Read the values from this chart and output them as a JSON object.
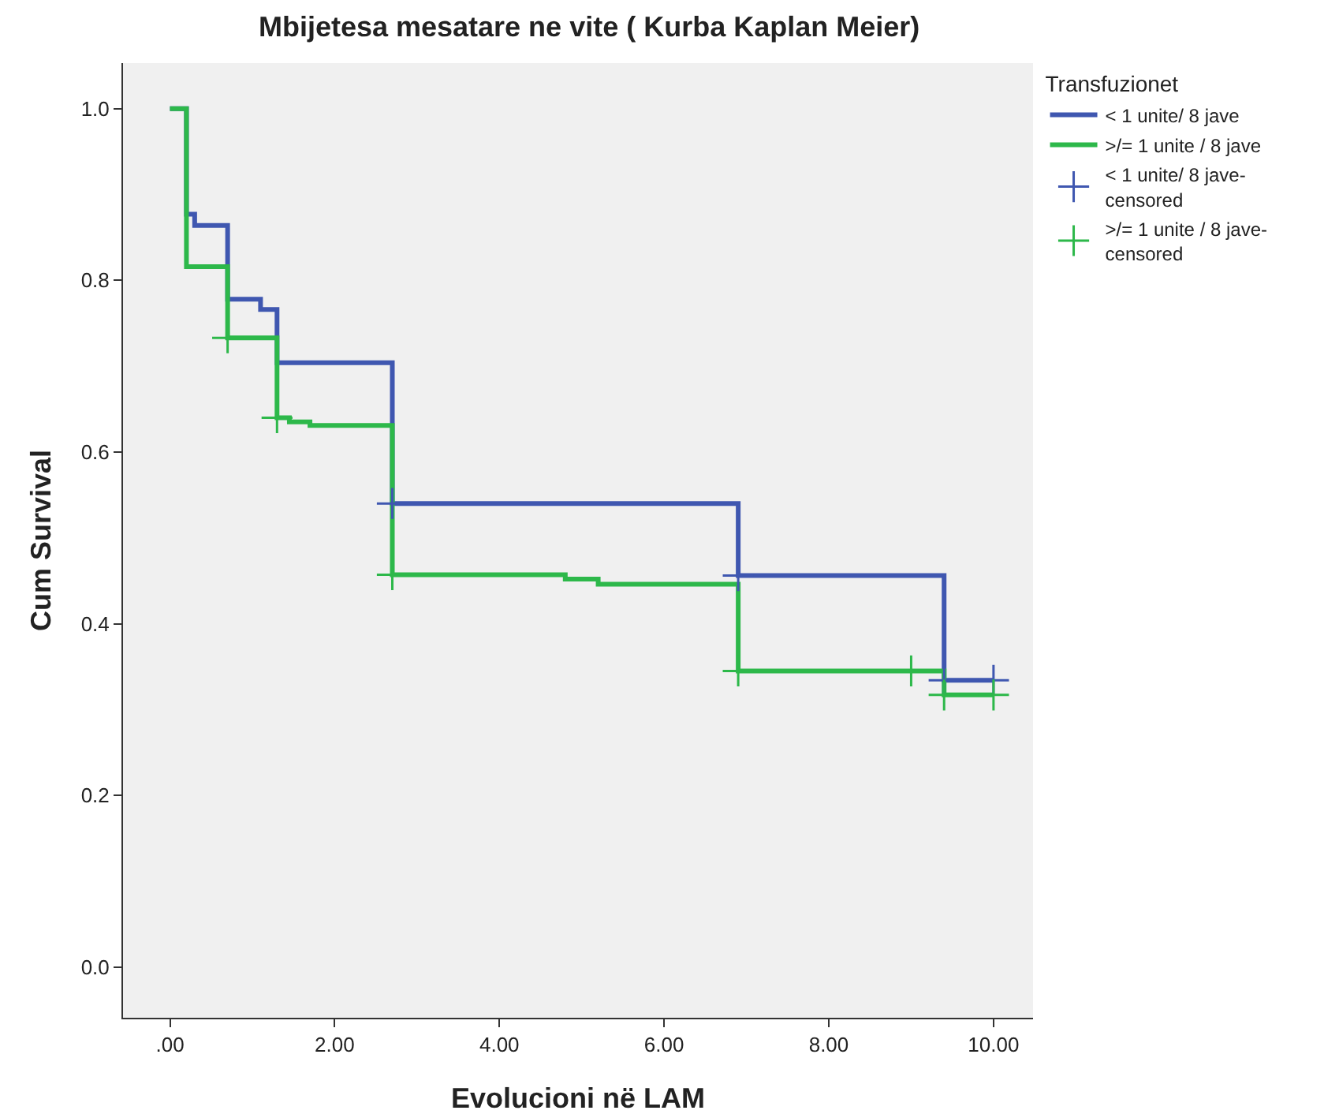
{
  "chart_data": {
    "type": "step",
    "title": "Mbijetesa mesatare ne vite ( Kurba Kaplan Meier)",
    "xlabel": "Evolucioni në LAM",
    "ylabel": "Cum Survival",
    "legend_title": "Transfuzionet",
    "legend": "right",
    "grid": false,
    "xlim": [
      -0.57,
      10.48
    ],
    "ylim": [
      -0.059,
      1.053
    ],
    "xticks": [
      {
        "value": 0,
        "label": ".00"
      },
      {
        "value": 2,
        "label": "2.00"
      },
      {
        "value": 4,
        "label": "4.00"
      },
      {
        "value": 6,
        "label": "6.00"
      },
      {
        "value": 8,
        "label": "8.00"
      },
      {
        "value": 10,
        "label": "10.00"
      }
    ],
    "yticks": [
      {
        "value": 0,
        "label": "0.0"
      },
      {
        "value": 0.2,
        "label": "0.2"
      },
      {
        "value": 0.4,
        "label": "0.4"
      },
      {
        "value": 0.6,
        "label": "0.6"
      },
      {
        "value": 0.8,
        "label": "0.8"
      },
      {
        "value": 1,
        "label": "1.0"
      }
    ],
    "series": [
      {
        "name": "< 1 unite/ 8 jave",
        "color": "#3f57b0",
        "x": [
          0,
          0.2,
          0.3,
          0.7,
          1.1,
          1.3,
          2.7,
          6.9,
          9.4,
          10
        ],
        "values": [
          1,
          0.877,
          0.864,
          0.778,
          0.766,
          0.704,
          0.54,
          0.456,
          0.334,
          0.334
        ]
      },
      {
        "name": ">/= 1 unite / 8 jave",
        "color": "#2db84a",
        "x": [
          0,
          0.2,
          0.7,
          1.3,
          1.45,
          1.7,
          2.7,
          4.8,
          5.2,
          6.9,
          9.4,
          10
        ],
        "values": [
          1,
          0.816,
          0.733,
          0.64,
          0.635,
          0.631,
          0.457,
          0.452,
          0.446,
          0.345,
          0.317,
          0.317
        ]
      },
      {
        "name": "< 1 unite/ 8 jave-censored",
        "type": "scatter",
        "marker": "cross",
        "color": "#3f57b0",
        "x": [
          2.7,
          6.9,
          9.4,
          10
        ],
        "values": [
          0.54,
          0.456,
          0.334,
          0.334
        ]
      },
      {
        "name": ">/= 1 unite / 8 jave-censored",
        "type": "scatter",
        "marker": "cross",
        "color": "#2db84a",
        "x": [
          0.7,
          1.3,
          2.7,
          6.9,
          9.0,
          9.4,
          10
        ],
        "values": [
          0.733,
          0.64,
          0.457,
          0.345,
          0.345,
          0.317,
          0.317
        ]
      }
    ]
  }
}
